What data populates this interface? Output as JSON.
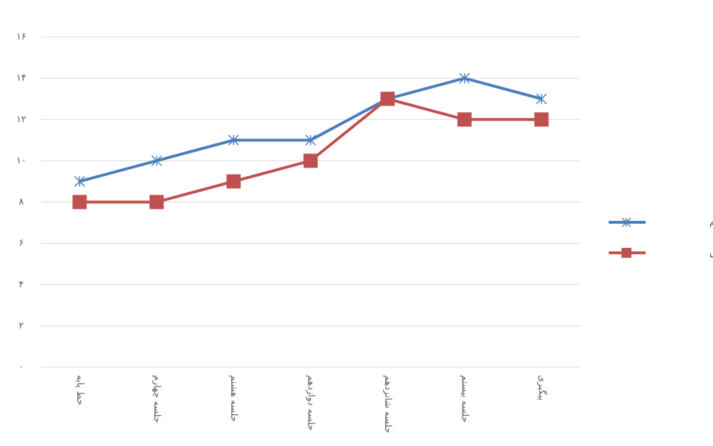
{
  "chart_data": {
    "type": "line",
    "categories": [
      "خط پایه",
      "جلسه چهارم",
      "جلسه هشتم",
      "جلسه دوازدهم",
      "جلسه شانزدهم",
      "جلسه بیستم",
      "پیگیری"
    ],
    "series": [
      {
        "name": "ارقام مستقیم",
        "color": "#4a7ebb",
        "marker": "asterisk",
        "values": [
          9,
          10,
          11,
          11,
          13,
          14,
          13
        ]
      },
      {
        "name": "ارقام معکوس",
        "color": "#c0504d",
        "marker": "square",
        "values": [
          8,
          8,
          9,
          10,
          13,
          12,
          12
        ]
      }
    ],
    "ylim": [
      0,
      16
    ],
    "yticks": [
      {
        "value": 0,
        "label": "۰"
      },
      {
        "value": 2,
        "label": "۲"
      },
      {
        "value": 4,
        "label": "۴"
      },
      {
        "value": 6,
        "label": "۶"
      },
      {
        "value": 8,
        "label": "۸"
      },
      {
        "value": 10,
        "label": "۱۰"
      },
      {
        "value": 12,
        "label": "۱۲"
      },
      {
        "value": 14,
        "label": "۱۴"
      },
      {
        "value": 16,
        "label": "۱۶"
      }
    ],
    "grid": true,
    "legend": "right"
  }
}
